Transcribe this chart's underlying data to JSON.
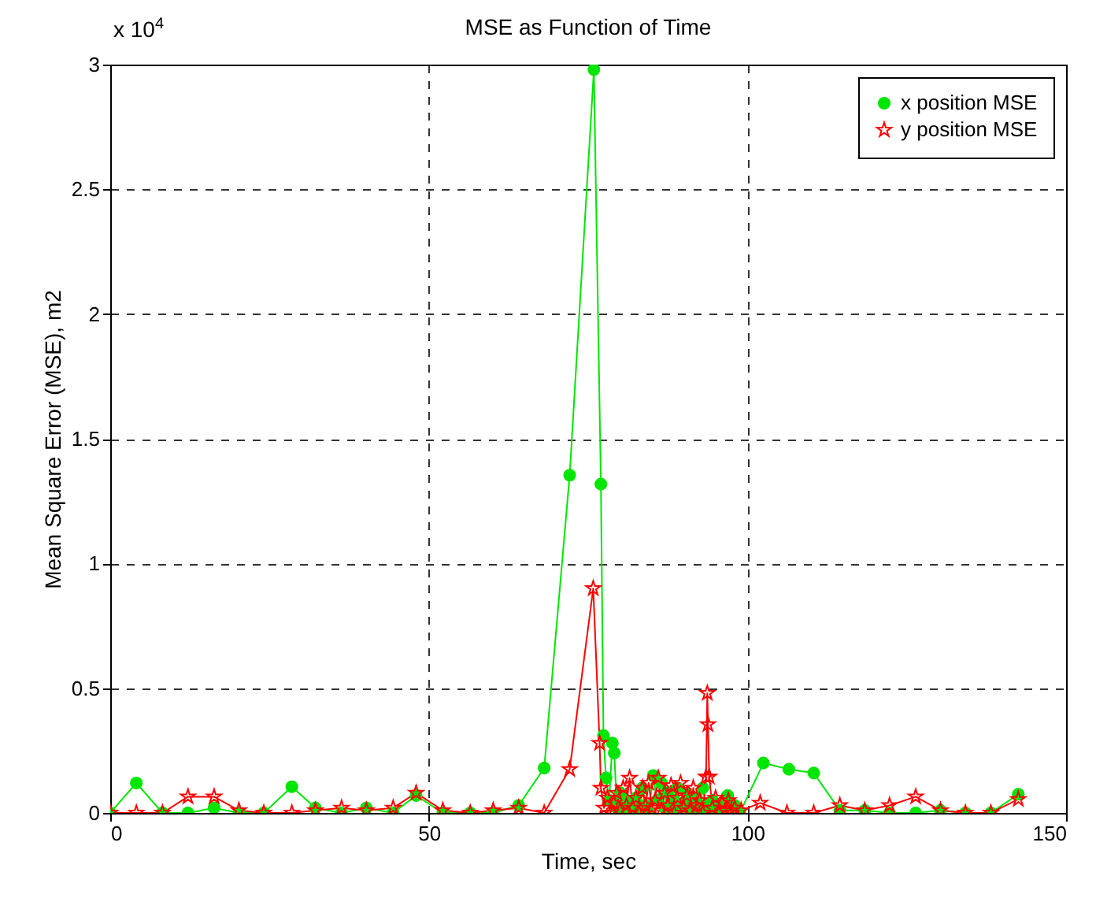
{
  "chart_data": {
    "type": "line",
    "title": "MSE as Function of Time",
    "xlabel": "Time, sec",
    "ylabel": "Mean Square Error (MSE), m2",
    "annotations": [
      "x 10$^{4}$"
    ],
    "xlim": [
      0,
      150
    ],
    "xticks": [
      0,
      50,
      100,
      150
    ],
    "ylim": [
      0,
      3
    ],
    "yticks": [
      0,
      0.5,
      1,
      1.5,
      2,
      2.5,
      3
    ],
    "grid": true,
    "legend": "top right",
    "series": [
      {
        "name": "x position MSE",
        "color": "#00e600",
        "marker": "circle",
        "x": [
          0,
          4.1,
          8.2,
          12.2,
          16.3,
          20.2,
          24.1,
          28.5,
          32.2,
          36.3,
          40.2,
          44.4,
          48,
          52.2,
          56.5,
          60.1,
          64.1,
          68.1,
          72.1,
          75.9,
          77.0,
          77.4,
          77.8,
          78.3,
          78.8,
          79.1,
          79.5,
          80,
          80.5,
          81,
          81.5,
          82,
          82.5,
          83,
          83.5,
          84,
          84.5,
          85.2,
          85.8,
          86.5,
          87,
          87.5,
          88,
          88.5,
          89,
          89.5,
          90,
          90.5,
          91,
          91.5,
          92,
          92.5,
          93,
          93.5,
          94,
          94.5,
          95,
          95.5,
          96,
          96.9,
          97.5,
          98,
          98.8,
          102.5,
          106.5,
          110.4,
          114.5,
          118.4,
          122.3,
          126.4,
          130.3,
          134.2,
          138.2,
          142.5
        ],
        "values": [
          0,
          0.12,
          0,
          0,
          0.02,
          0,
          0,
          0.105,
          0.02,
          0,
          0.02,
          0,
          0.07,
          0,
          0,
          0,
          0.03,
          0.18,
          1.354,
          2.98,
          1.318,
          0.31,
          0.14,
          0.05,
          0.28,
          0.24,
          0.02,
          0.08,
          0.01,
          0.05,
          0.03,
          0,
          0.06,
          0.02,
          0.1,
          0.03,
          0,
          0.15,
          0.05,
          0.12,
          0.02,
          0.08,
          0,
          0.05,
          0.1,
          0.01,
          0.04,
          0.08,
          0.02,
          0,
          0.06,
          0.02,
          0.1,
          0.03,
          0,
          0.05,
          0.01,
          0.03,
          0,
          0.07,
          0.01,
          0.03,
          0,
          0.2,
          0.175,
          0.16,
          0.01,
          0.01,
          0,
          0,
          0.01,
          0,
          0,
          0.075
        ]
      },
      {
        "name": "y position MSE",
        "color": "#ff0000",
        "marker": "star",
        "x": [
          0,
          4.1,
          8.2,
          12.2,
          16.3,
          20.2,
          24.1,
          28.5,
          32.2,
          36.3,
          40.2,
          44.4,
          48,
          52.2,
          56.5,
          60.1,
          64.1,
          68.1,
          72.1,
          75.8,
          76.8,
          77,
          77.5,
          78,
          78.5,
          79,
          79.5,
          80,
          80.5,
          81,
          81.5,
          82,
          82.5,
          83,
          83.5,
          84,
          84.5,
          85,
          85.5,
          86,
          86.5,
          87,
          87.5,
          88,
          88.5,
          89,
          89.5,
          90,
          90.5,
          91,
          91.5,
          92,
          92.5,
          93,
          93.5,
          93.7,
          93.8,
          94,
          94.5,
          95,
          95.5,
          96,
          96.5,
          97,
          97.5,
          98,
          99,
          102,
          106.2,
          110.4,
          114.5,
          118.4,
          122.3,
          126.4,
          130.3,
          134.2,
          138.2,
          142.5
        ],
        "values": [
          0,
          0,
          0,
          0.065,
          0.065,
          0.01,
          0,
          0,
          0.01,
          0.02,
          0.01,
          0.02,
          0.08,
          0.01,
          0,
          0.01,
          0.02,
          0,
          0.175,
          0.9,
          0.28,
          0.1,
          0.02,
          0.06,
          0,
          0.04,
          0.08,
          0.01,
          0.1,
          0.03,
          0.14,
          0.02,
          0.06,
          0,
          0.1,
          0.03,
          0.12,
          0.02,
          0.05,
          0.14,
          0.01,
          0.08,
          0.03,
          0.11,
          0,
          0.06,
          0.12,
          0.02,
          0.07,
          0.01,
          0.1,
          0.03,
          0.05,
          0,
          0.145,
          0.48,
          0.355,
          0.145,
          0.02,
          0.06,
          0,
          0.04,
          0.01,
          0.05,
          0,
          0.02,
          0.01,
          0.04,
          0,
          0,
          0.03,
          0.01,
          0.03,
          0.065,
          0.01,
          0,
          0,
          0.055
        ]
      }
    ]
  }
}
